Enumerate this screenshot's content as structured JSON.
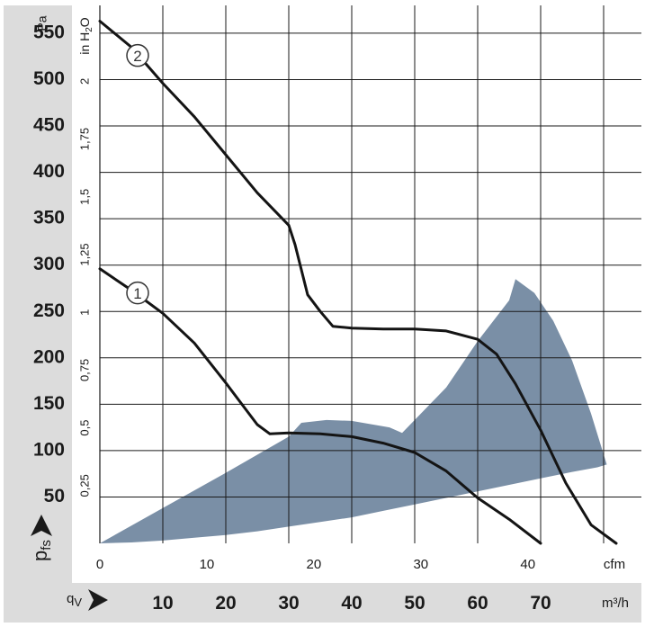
{
  "chart_data": {
    "type": "line",
    "left_axis": {
      "unit_label": "Pa",
      "ticks": [
        50,
        100,
        150,
        200,
        250,
        300,
        350,
        400,
        450,
        500,
        550
      ],
      "range": [
        0,
        580
      ]
    },
    "right_axis": {
      "unit_label": "in H2O",
      "unit_main": "in H",
      "unit_sub": "2",
      "unit_tail": "O",
      "ticks": [
        "0,25",
        "0,5",
        "0,75",
        "1",
        "1,25",
        "1,5",
        "1,75",
        "2"
      ],
      "tick_values": [
        0.25,
        0.5,
        0.75,
        1,
        1.25,
        1.5,
        1.75,
        2
      ]
    },
    "pressure_label": {
      "main": "p",
      "sub": "fs"
    },
    "flow_label": {
      "main": "q",
      "sub": "V"
    },
    "cfm_axis": {
      "unit_label": "cfm",
      "ticks": [
        "0",
        "10",
        "20",
        "30",
        "40"
      ],
      "tick_values": [
        0,
        10,
        20,
        30,
        40
      ]
    },
    "m3h_axis": {
      "unit_label": "m³/h",
      "ticks": [
        "10",
        "20",
        "30",
        "40",
        "50",
        "60",
        "70"
      ],
      "tick_values": [
        10,
        20,
        30,
        40,
        50,
        60,
        70
      ],
      "range": [
        0,
        86
      ]
    },
    "series": [
      {
        "name": "1",
        "x_m3h": [
          0,
          5,
          10,
          15,
          20,
          23,
          25,
          27,
          28.5,
          30,
          35,
          40,
          45,
          50,
          55,
          60,
          65,
          70
        ],
        "y_pa": [
          296,
          273,
          248,
          216,
          173,
          146,
          128,
          118,
          118.5,
          119,
          118,
          115,
          108,
          98,
          78,
          49,
          26,
          0
        ]
      },
      {
        "name": "2",
        "x_m3h": [
          0,
          5,
          10,
          15,
          20,
          25,
          30,
          31,
          33,
          35,
          37,
          40,
          45,
          50,
          55,
          60,
          63,
          66,
          70,
          74,
          78,
          82
        ],
        "y_pa": [
          563,
          535,
          496,
          460,
          419,
          378,
          343,
          322,
          268,
          250,
          234,
          232,
          231,
          231,
          229,
          220,
          204,
          172,
          122,
          65,
          20,
          0
        ]
      }
    ],
    "operating_range": {
      "x_m3h": [
        0,
        10,
        20,
        30,
        32,
        36,
        40,
        46,
        48,
        55,
        60,
        65,
        66,
        69,
        72,
        75,
        78,
        80.5,
        79,
        75,
        70,
        65,
        60,
        55,
        50,
        45,
        40,
        35,
        30,
        25,
        20,
        15,
        10,
        5,
        0
      ],
      "y_pa": [
        0,
        38,
        76,
        115,
        130,
        133,
        132,
        125,
        119,
        168,
        218,
        262,
        285,
        270,
        240,
        197,
        140,
        85,
        82,
        77,
        70,
        63,
        56,
        49,
        42,
        35,
        28,
        23,
        18,
        13,
        9,
        6,
        3,
        1,
        0
      ]
    },
    "colors": {
      "curve": "#141414",
      "operating_range": "#7a8fa6",
      "grid": "#1a1a1a",
      "panel": "#dcdcdc"
    }
  }
}
